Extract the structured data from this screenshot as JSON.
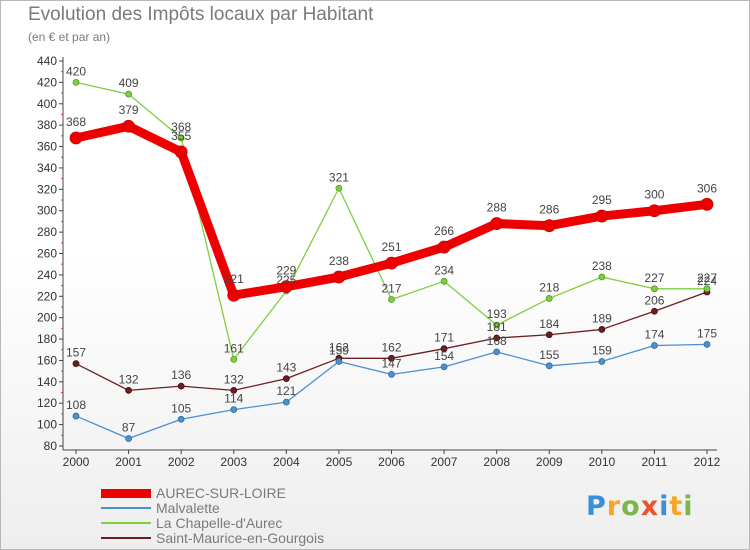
{
  "title": "Evolution des Impôts locaux par Habitant",
  "subtitle": "(en € et par an)",
  "logo": "Proxiti",
  "chart_data": {
    "type": "line",
    "title": "Evolution des Impôts locaux par Habitant",
    "subtitle": "(en € et par an)",
    "xlabel": "",
    "ylabel": "",
    "categories": [
      "2000",
      "2001",
      "2002",
      "2003",
      "2004",
      "2005",
      "2006",
      "2007",
      "2008",
      "2009",
      "2010",
      "2011",
      "2012"
    ],
    "ylim": [
      80,
      440
    ],
    "yticks": [
      80,
      100,
      120,
      140,
      160,
      180,
      200,
      220,
      240,
      260,
      280,
      300,
      320,
      340,
      360,
      380,
      400,
      420,
      440
    ],
    "grid": false,
    "legend_position": "bottom-left",
    "series": [
      {
        "name": "AUREC-SUR-LOIRE",
        "color": "#ee0000",
        "values": [
          368,
          379,
          355,
          221,
          229,
          238,
          251,
          266,
          288,
          286,
          295,
          300,
          306
        ]
      },
      {
        "name": "Malvalette",
        "color": "#4f8fcd",
        "values": [
          108,
          87,
          105,
          114,
          121,
          159,
          147,
          154,
          168,
          155,
          159,
          174,
          175
        ]
      },
      {
        "name": "La Chapelle-d'Aurec",
        "color": "#7fce3e",
        "values": [
          420,
          409,
          368,
          161,
          225,
          321,
          217,
          234,
          193,
          218,
          238,
          227,
          227
        ]
      },
      {
        "name": "Saint-Maurice-en-Gourgois",
        "color": "#6b1f22",
        "values": [
          157,
          132,
          136,
          132,
          143,
          162,
          162,
          171,
          181,
          184,
          189,
          206,
          224
        ]
      }
    ],
    "data_labels": [
      [
        "368",
        "379",
        "355",
        "221",
        "229",
        "238",
        "251",
        "266",
        "288",
        "286",
        "295",
        "300",
        "306"
      ],
      [
        "108",
        "87",
        "105",
        "114",
        "121",
        "159",
        "147",
        "154",
        "168",
        "155",
        "159",
        "174",
        "175"
      ],
      [
        "420",
        "409",
        "368",
        "161",
        "225",
        "321",
        "217",
        "234",
        "193",
        "218",
        "238",
        "227",
        "227"
      ],
      [
        "157",
        "132",
        "136",
        "132",
        "143",
        "162",
        "162",
        "171",
        "181",
        "184",
        "189",
        "206",
        "224"
      ]
    ]
  }
}
